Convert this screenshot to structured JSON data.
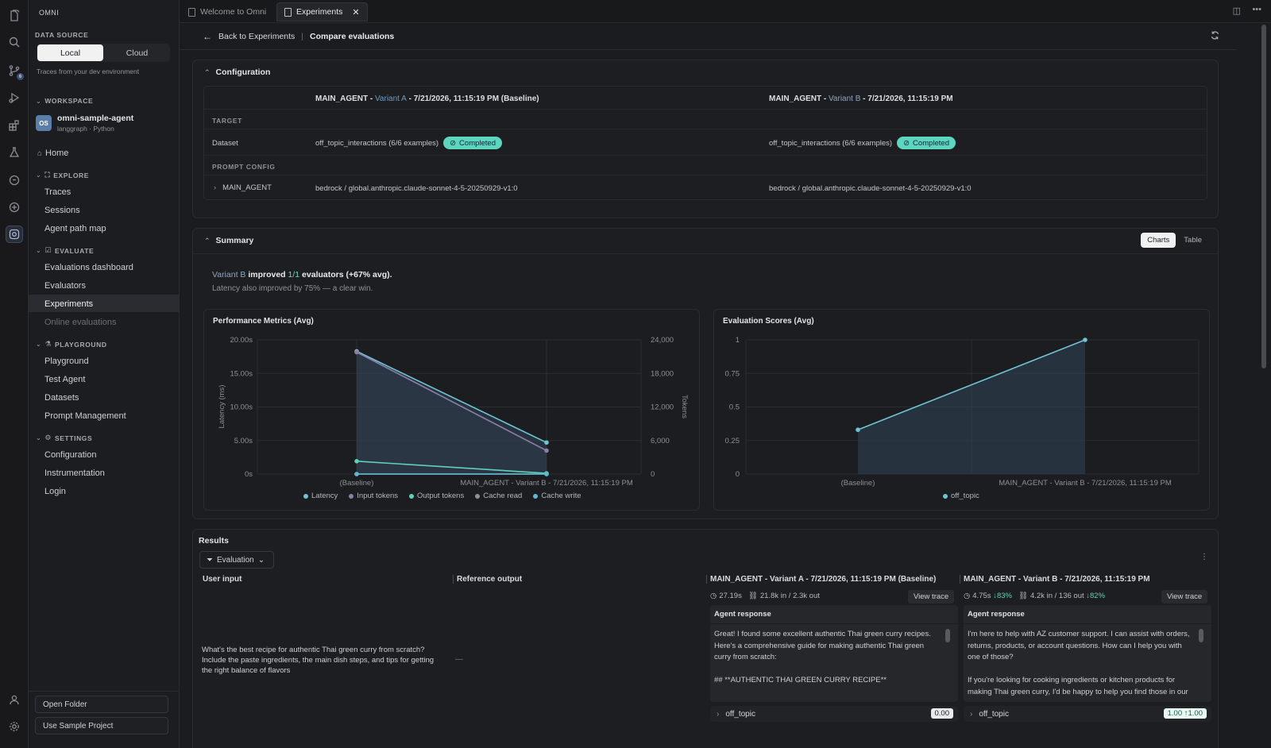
{
  "app": {
    "name": "OMNI"
  },
  "tabs": [
    {
      "label": "Welcome to Omni"
    },
    {
      "label": "Experiments"
    }
  ],
  "sidebar": {
    "data_source_label": "DATA SOURCE",
    "data_source_options": [
      "Local",
      "Cloud"
    ],
    "data_source_selected": "Local",
    "data_source_note": "Traces from your dev environment",
    "workspace_label": "WORKSPACE",
    "workspace": {
      "avatar": "OS",
      "name": "omni-sample-agent",
      "sub": "langgraph · Python"
    },
    "home": "Home",
    "explore_label": "EXPLORE",
    "explore": [
      "Traces",
      "Sessions",
      "Agent path map"
    ],
    "evaluate_label": "EVALUATE",
    "evaluate": [
      "Evaluations dashboard",
      "Evaluators",
      "Experiments",
      "Online evaluations"
    ],
    "playground_label": "PLAYGROUND",
    "playground": [
      "Playground",
      "Test Agent",
      "Datasets",
      "Prompt Management"
    ],
    "settings_label": "SETTINGS",
    "settings": [
      "Configuration",
      "Instrumentation",
      "Login"
    ],
    "open_folder": "Open Folder",
    "use_sample": "Use Sample Project",
    "activity_badge": "6"
  },
  "header": {
    "back": "Back to Experiments",
    "title": "Compare evaluations"
  },
  "configuration": {
    "title": "Configuration",
    "variant_a": {
      "prefix": "MAIN_AGENT - ",
      "name": "Variant A",
      "suffix": " - 7/21/2026, 11:15:19 PM (Baseline)"
    },
    "variant_b": {
      "prefix": "MAIN_AGENT - ",
      "name": "Variant B",
      "suffix": " - 7/21/2026, 11:15:19 PM"
    },
    "target_label": "TARGET",
    "dataset_label": "Dataset",
    "dataset_a": "off_topic_interactions (6/6 examples)",
    "dataset_b": "off_topic_interactions (6/6 examples)",
    "status": "Completed",
    "prompt_label": "PROMPT CONFIG",
    "agent_label": "MAIN_AGENT",
    "model_a": "bedrock / global.anthropic.claude-sonnet-4-5-20250929-v1:0",
    "model_b": "bedrock / global.anthropic.claude-sonnet-4-5-20250929-v1:0"
  },
  "summary": {
    "title": "Summary",
    "toggle": [
      "Charts",
      "Table"
    ],
    "line1_a": "Variant B",
    "line1_b": " improved ",
    "line1_c": "1/1",
    "line1_d": " evaluators (+67% avg).",
    "line2": "Latency also improved by 75% — a clear win."
  },
  "chart_data": [
    {
      "type": "area",
      "title": "Performance Metrics (Avg)",
      "categories": [
        "(Baseline)",
        "MAIN_AGENT - Variant B - 7/21/2026, 11:15:19 PM"
      ],
      "ylabel": "Latency (ms)",
      "ylabel_right": "Tokens",
      "ylim": [
        0,
        20
      ],
      "ylim_right": [
        0,
        24000
      ],
      "yticks": [
        "0s",
        "5.00s",
        "10.00s",
        "15.00s",
        "20.00s"
      ],
      "yticks_right": [
        "0",
        "6,000",
        "12,000",
        "18,000",
        "24,000"
      ],
      "series": [
        {
          "name": "Latency",
          "axis": "left",
          "values": [
            18.3,
            4.7
          ],
          "color": "#6fc3d4"
        },
        {
          "name": "Input tokens",
          "axis": "right",
          "values": [
            21800,
            4200
          ],
          "color": "#8a7fa8"
        },
        {
          "name": "Output tokens",
          "axis": "right",
          "values": [
            2300,
            136
          ],
          "color": "#5fd1b7"
        },
        {
          "name": "Cache read",
          "axis": "right",
          "values": [
            0,
            0
          ],
          "color": "#8e9196"
        },
        {
          "name": "Cache write",
          "axis": "right",
          "values": [
            0,
            0
          ],
          "color": "#5fb8d4"
        }
      ]
    },
    {
      "type": "area",
      "title": "Evaluation Scores (Avg)",
      "categories": [
        "(Baseline)",
        "MAIN_AGENT - Variant B - 7/21/2026, 11:15:19 PM"
      ],
      "ylim": [
        0,
        1
      ],
      "yticks": [
        "0",
        "0.25",
        "0.5",
        "0.75",
        "1"
      ],
      "series": [
        {
          "name": "off_topic",
          "values": [
            0.33,
            1.0
          ],
          "color": "#6fc3d4"
        }
      ]
    }
  ],
  "results": {
    "title": "Results",
    "filter": "Evaluation",
    "columns": [
      "User input",
      "Reference output",
      "MAIN_AGENT - Variant A - 7/21/2026, 11:15:19 PM (Baseline)",
      "MAIN_AGENT - Variant B - 7/21/2026, 11:15:19 PM"
    ],
    "user_input": "What's the best recipe for authentic Thai green curry from scratch? Include the paste ingredients, the main dish steps, and tips for getting the right balance of flavors",
    "reference": "—",
    "variant_a": {
      "latency": "27.19s",
      "tokens": "21.8k in / 2.3k out",
      "view_trace": "View trace",
      "response_label": "Agent response",
      "response": "Great! I found some excellent authentic Thai green curry recipes. Here's a comprehensive guide for making authentic Thai green curry from scratch:\n\n## **AUTHENTIC THAI GREEN CURRY RECIPE**\n\n### **GREEN CURRY PASTE INGREDIENTS**",
      "evaluator": "off_topic",
      "score": "0.00"
    },
    "variant_b": {
      "latency": "4.75s",
      "latency_delta": "↓83%",
      "tokens": "4.2k in / 136 out",
      "tokens_delta": "↓82%",
      "view_trace": "View trace",
      "response_label": "Agent response",
      "response": "I'm here to help with AZ customer support. I can assist with orders, returns, products, or account questions. How can I help you with one of those?\n\nIf you're looking for cooking ingredients or kitchen products for making Thai green curry, I'd be happy to help you find those in our catalog.",
      "evaluator": "off_topic",
      "score": "1.00 ↑1.00"
    }
  }
}
